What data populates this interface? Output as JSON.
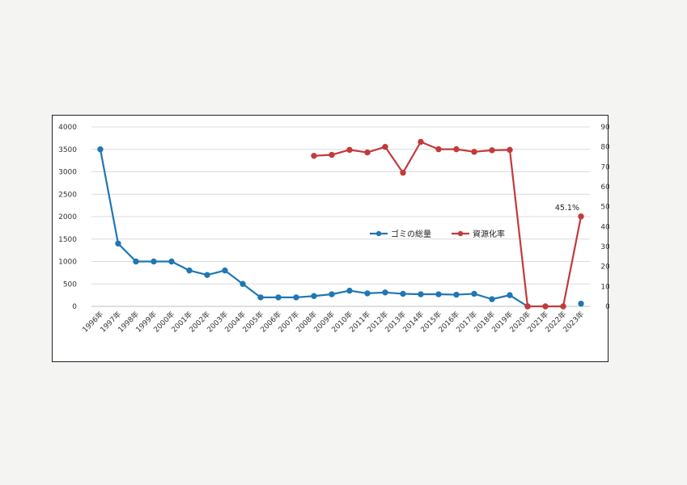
{
  "chart_data": {
    "type": "line",
    "categories": [
      "1996年",
      "1997年",
      "1998年",
      "1999年",
      "2000年",
      "2001年",
      "2002年",
      "2003年",
      "2004年",
      "2005年",
      "2006年",
      "2007年",
      "2008年",
      "2009年",
      "2010年",
      "2011年",
      "2012年",
      "2013年",
      "2014年",
      "2015年",
      "2016年",
      "2017年",
      "2018年",
      "2019年",
      "2020年",
      "2021年",
      "2022年",
      "2023年"
    ],
    "series": [
      {
        "name": "ゴミの総量",
        "axis": "left",
        "color": "#1f77b4",
        "values": [
          3500,
          1400,
          1000,
          1000,
          1000,
          800,
          700,
          800,
          500,
          200,
          200,
          200,
          230,
          270,
          350,
          290,
          310,
          280,
          270,
          270,
          260,
          280,
          160,
          250,
          0,
          null,
          null,
          60
        ]
      },
      {
        "name": "資源化率",
        "axis": "right",
        "color": "#c23b3b",
        "values": [
          null,
          null,
          null,
          null,
          null,
          null,
          null,
          null,
          null,
          null,
          null,
          null,
          0.755,
          0.76,
          0.785,
          0.772,
          0.8,
          0.67,
          0.825,
          0.788,
          0.788,
          0.775,
          0.783,
          0.785,
          0.0,
          0.0,
          0.0,
          0.451
        ]
      }
    ],
    "y_left": {
      "ticks": [
        "4000",
        "3500",
        "3000",
        "2500",
        "2000",
        "1500",
        "1000",
        "500",
        "0"
      ],
      "ylim": [
        0,
        4000
      ]
    },
    "y_right": {
      "ticks": [
        "90.0%",
        "80.0%",
        "70.0%",
        "60.0%",
        "50.0%",
        "40.0%",
        "30.0%",
        "20.0%",
        "10.0%",
        "0.0%"
      ],
      "ylim": [
        0,
        0.9
      ]
    },
    "data_labels": [
      {
        "series": 1,
        "index": 27,
        "text": "45.1%"
      }
    ],
    "grid": true,
    "legend": "center-right"
  }
}
